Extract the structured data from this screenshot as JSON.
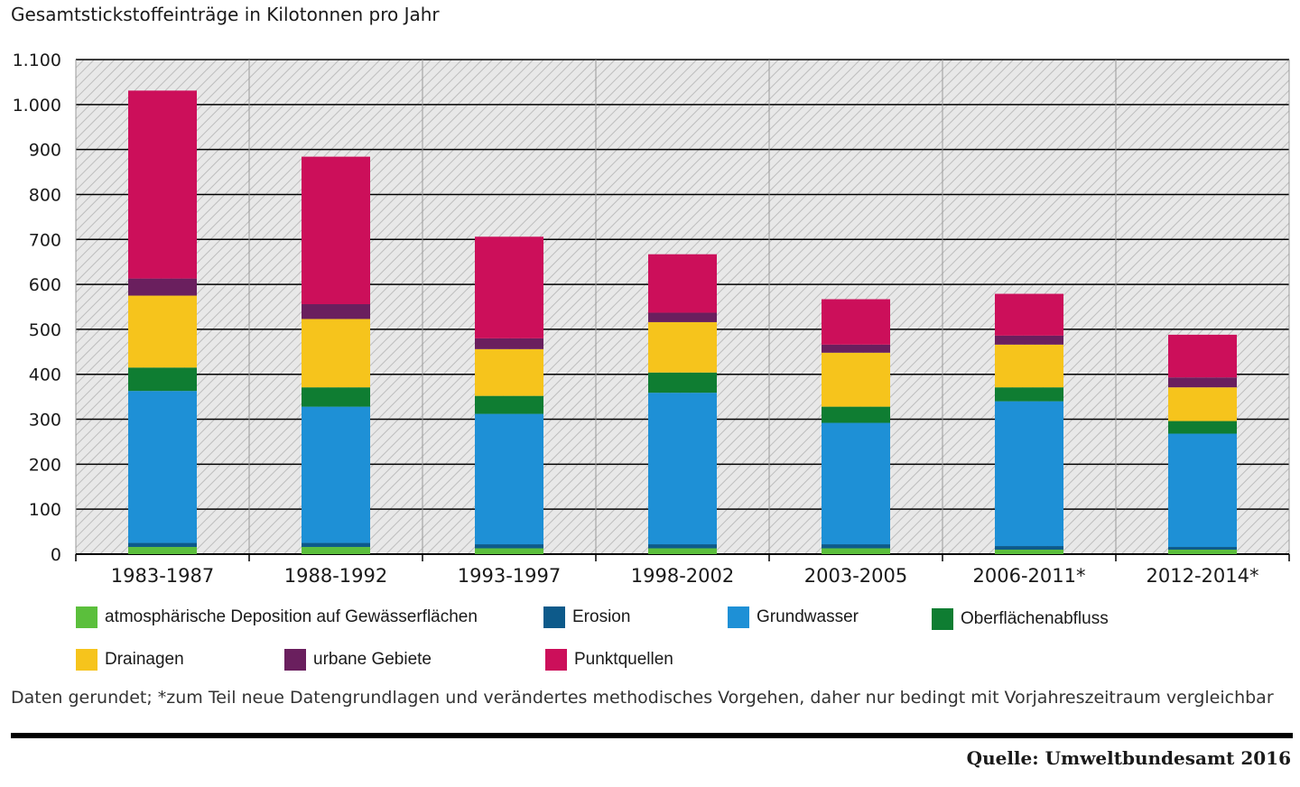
{
  "chart_data": {
    "type": "bar",
    "stacked": true,
    "title": "Gesamtstickstoffeinträge in Kilotonnen pro Jahr",
    "xlabel": "",
    "ylabel": "",
    "ylim": [
      0,
      1100
    ],
    "y_ticks": [
      0,
      100,
      200,
      300,
      400,
      500,
      600,
      700,
      800,
      900,
      1000,
      1100
    ],
    "y_tick_labels": [
      "0",
      "100",
      "200",
      "300",
      "400",
      "500",
      "600",
      "700",
      "800",
      "900",
      "1.000",
      "1.100"
    ],
    "categories": [
      "1983-1987",
      "1988-1992",
      "1993-1997",
      "1998-2002",
      "2003-2005",
      "2006-2011*",
      "2012-2014*"
    ],
    "series": [
      {
        "name": "atmosphärische Deposition auf Gewässerflächen",
        "color": "#5bbf3c",
        "values": [
          16,
          16,
          13,
          13,
          13,
          10,
          10
        ]
      },
      {
        "name": "Erosion",
        "color": "#0d5a8a",
        "values": [
          9,
          9,
          9,
          9,
          9,
          8,
          6
        ]
      },
      {
        "name": "Grundwasser",
        "color": "#1e90d6",
        "values": [
          338,
          303,
          290,
          337,
          270,
          322,
          252
        ]
      },
      {
        "name": "Oberflächenabfluss",
        "color": "#0f7d32",
        "values": [
          52,
          43,
          40,
          45,
          36,
          31,
          28
        ]
      },
      {
        "name": "Drainagen",
        "color": "#f6c41c",
        "values": [
          160,
          152,
          104,
          112,
          120,
          95,
          75
        ]
      },
      {
        "name": "urbane Gebiete",
        "color": "#6a1f5e",
        "values": [
          38,
          33,
          24,
          21,
          18,
          20,
          22
        ]
      },
      {
        "name": "Punktquellen",
        "color": "#cc0f5a",
        "values": [
          418,
          328,
          226,
          130,
          101,
          93,
          95
        ]
      }
    ],
    "legend_position": "bottom",
    "grid": true
  },
  "footnote": "Daten gerundet; *zum Teil neue Datengrundlagen und verändertes methodisches Vorgehen, daher nur bedingt mit Vorjahreszeitraum vergleichbar",
  "source": "Quelle: Umweltbundesamt 2016"
}
